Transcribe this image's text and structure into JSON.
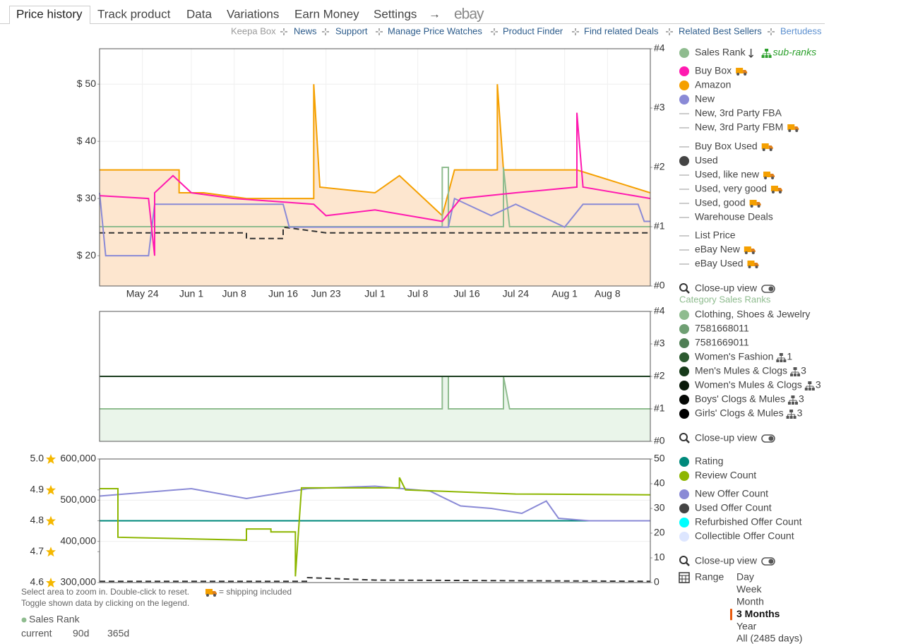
{
  "tabs": [
    "Price history",
    "Track product",
    "Data",
    "Variations",
    "Earn Money",
    "Settings",
    "→",
    "ebay"
  ],
  "links": [
    "Keepa Box",
    "News",
    "Support",
    "Manage Price Watches",
    "Product Finder",
    "Find related Deals",
    "Related Best Sellers",
    "Bertudess"
  ],
  "chart_data": [
    {
      "type": "line",
      "xlim": [
        "May 17",
        "Aug 15"
      ],
      "xticks": [
        "May 24",
        "Jun 1",
        "Jun 8",
        "Jun 16",
        "Jun 23",
        "Jul 1",
        "Jul 8",
        "Jul 16",
        "Jul 24",
        "Aug 1",
        "Aug 8"
      ],
      "ylim": [
        14.7,
        56.2
      ],
      "yticks": [
        {
          "value": 20,
          "label": "$ 20"
        },
        {
          "value": 30,
          "label": "$ 30"
        },
        {
          "value": 40,
          "label": "$ 40"
        },
        {
          "value": 50,
          "label": "$ 50"
        }
      ],
      "y2lim": [
        0,
        4
      ],
      "y2ticks": [
        {
          "value": 0,
          "label": "#0"
        },
        {
          "value": 1,
          "label": "#1"
        },
        {
          "value": 2,
          "label": "#2"
        },
        {
          "value": 3,
          "label": "#3"
        },
        {
          "value": 4,
          "label": "#4"
        }
      ],
      "grid": true,
      "series": [
        {
          "color": "#f5a000",
          "fill": "#fde6cf",
          "x": [
            "May 17",
            "May 30",
            "May 30",
            "Jun 3",
            "Jun 10",
            "Jun 21",
            "Jun 21",
            "Jun 22",
            "Jul 1",
            "Jul 5",
            "Jul 12",
            "Jul 14",
            "Jul 21",
            "Jul 21",
            "Jul 22",
            "Aug 3",
            "Aug 15"
          ],
          "values": [
            35,
            35,
            31,
            31,
            30,
            30,
            50,
            32,
            31,
            34,
            27,
            35,
            35,
            50,
            35,
            35,
            31
          ]
        },
        {
          "color": "#8fbc8f",
          "axis": "y2",
          "x": [
            "May 17",
            "Jul 12",
            "Jul 12",
            "Jul 13",
            "Jul 13",
            "Jul 22",
            "Jul 22",
            "Jul 23",
            "Aug 15"
          ],
          "values": [
            1,
            1,
            2,
            2,
            1,
            1,
            2,
            1,
            1
          ]
        },
        {
          "color": "#333333",
          "dash": true,
          "x": [
            "May 17",
            "Jun 10",
            "Jun 10",
            "Jun 16",
            "Jun 16",
            "Jun 23",
            "Aug 15"
          ],
          "values": [
            24,
            24,
            23,
            23,
            25,
            24,
            24
          ]
        },
        {
          "color": "#8a8ad6",
          "x": [
            "May 17",
            "May 18",
            "May 25",
            "May 26",
            "Jun 16",
            "Jun 17",
            "Jul 13",
            "Jul 14",
            "Jul 20",
            "Jul 24",
            "Aug 1",
            "Aug 4",
            "Aug 13",
            "Aug 14",
            "Aug 15"
          ],
          "values": [
            31,
            20,
            20,
            29,
            29,
            25,
            25,
            30,
            27,
            29,
            25,
            29,
            29,
            26,
            26
          ]
        },
        {
          "color": "#ff1ab0",
          "x": [
            "May 17",
            "May 25",
            "May 26",
            "May 26",
            "May 29",
            "Jun 1",
            "Jun 8",
            "Jun 21",
            "Jun 23",
            "Jul 1",
            "Jul 12",
            "Jul 15",
            "Jul 24",
            "Aug 3",
            "Aug 3",
            "Aug 4",
            "Aug 15"
          ],
          "values": [
            30.5,
            30,
            20,
            31,
            34,
            31,
            30,
            29,
            27,
            28,
            26,
            30,
            31,
            32,
            45,
            32,
            30
          ]
        }
      ]
    },
    {
      "type": "line",
      "xlim": [
        "May 17",
        "Aug 15"
      ],
      "y2lim": [
        0,
        4
      ],
      "y2ticks": [
        {
          "value": 0,
          "label": "#0"
        },
        {
          "value": 1,
          "label": "#1"
        },
        {
          "value": 2,
          "label": "#2"
        },
        {
          "value": 3,
          "label": "#3"
        },
        {
          "value": 4,
          "label": "#4"
        }
      ],
      "series": [
        {
          "color": "#8fbc8f",
          "fill": "#eaf5ea",
          "axis": "y2",
          "x": [
            "May 17",
            "Jul 12",
            "Jul 12",
            "Jul 13",
            "Jul 13",
            "Jul 22",
            "Jul 22",
            "Jul 23",
            "Aug 15"
          ],
          "values": [
            1,
            1,
            2,
            2,
            1,
            1,
            2,
            1,
            1
          ]
        },
        {
          "color": "#1b3d1f",
          "axis": "y2",
          "x": [
            "May 17",
            "Aug 15"
          ],
          "values": [
            2,
            2
          ]
        }
      ]
    },
    {
      "type": "line",
      "xlim": [
        "May 17",
        "Aug 15"
      ],
      "ylim": [
        300000,
        600000
      ],
      "yticks": [
        {
          "value": 300000,
          "label": "300,000"
        },
        {
          "value": 400000,
          "label": "400,000"
        },
        {
          "value": 500000,
          "label": "500,000"
        },
        {
          "value": 600000,
          "label": "600,000"
        }
      ],
      "y2lim": [
        0,
        50
      ],
      "y2ticks": [
        0,
        10,
        20,
        30,
        40,
        50
      ],
      "y3lim": [
        4.6,
        5.0
      ],
      "y3ticks": [
        4.6,
        4.7,
        4.8,
        4.9,
        {
          "value": 5,
          "label": "5.0"
        }
      ],
      "grid": true,
      "series": [
        {
          "color": "#333333",
          "axis": "y2",
          "dash": true,
          "x": [
            "May 17",
            "Jun 20",
            "Jun 20",
            "Jul 1",
            "Aug 15"
          ],
          "values": [
            0.5,
            0.5,
            2,
            1,
            0.5
          ]
        },
        {
          "color": "#00897b",
          "axis": "y3",
          "x": [
            "May 17",
            "Aug 15"
          ],
          "values": [
            4.8,
            4.8
          ]
        },
        {
          "color": "#8a8ad6",
          "axis": "y2",
          "x": [
            "May 17",
            "Jun 1",
            "Jun 10",
            "Jun 20",
            "Jul 1",
            "Jul 10",
            "Jul 15",
            "Jul 20",
            "Jul 25",
            "Jul 29",
            "Jul 31",
            "Aug 5",
            "Aug 15"
          ],
          "values": [
            35,
            38,
            34,
            38,
            39,
            37,
            31,
            30,
            28,
            33,
            26,
            25,
            25
          ]
        },
        {
          "color": "#8db600",
          "x": [
            "May 17",
            "May 20",
            "May 20",
            "Jun 10",
            "Jun 10",
            "Jun 14",
            "Jun 14",
            "Jun 18",
            "Jun 18",
            "Jun 19",
            "Jun 20",
            "Jul 5",
            "Jul 5",
            "Jul 6",
            "Jul 24",
            "Aug 15"
          ],
          "values": [
            528000,
            528000,
            410000,
            403000,
            430000,
            430000,
            423000,
            423000,
            315000,
            530000,
            530000,
            530000,
            555000,
            525000,
            515000,
            513000
          ]
        }
      ]
    }
  ],
  "legend": {
    "sales_rank": {
      "label": "Sales Rank",
      "color": "#8fbc8f",
      "sub_ranks": "sub-ranks"
    },
    "price_groups": [
      [
        {
          "label": "Buy Box",
          "color": "#ff1ab0",
          "marker": "dot",
          "shipping": true
        },
        {
          "label": "Amazon",
          "color": "#f5a000",
          "marker": "dot"
        },
        {
          "label": "New",
          "color": "#8a8ad6",
          "marker": "dot"
        },
        {
          "label": "New, 3rd Party FBA",
          "color": "#bbbbbb",
          "marker": "line"
        },
        {
          "label": "New, 3rd Party FBM",
          "color": "#bbbbbb",
          "marker": "line",
          "shipping": true
        }
      ],
      [
        {
          "label": "Buy Box Used",
          "color": "#bbbbbb",
          "marker": "line",
          "shipping": true
        },
        {
          "label": "Used",
          "color": "#444444",
          "marker": "dot"
        },
        {
          "label": "Used, like new",
          "color": "#bbbbbb",
          "marker": "line",
          "shipping": true
        },
        {
          "label": "Used, very good",
          "color": "#bbbbbb",
          "marker": "line",
          "shipping": true
        },
        {
          "label": "Used, good",
          "color": "#bbbbbb",
          "marker": "line",
          "shipping": true
        },
        {
          "label": "Warehouse Deals",
          "color": "#bbbbbb",
          "marker": "line"
        }
      ],
      [
        {
          "label": "List Price",
          "color": "#bbbbbb",
          "marker": "line"
        },
        {
          "label": "eBay New",
          "color": "#bbbbbb",
          "marker": "line",
          "shipping": true
        },
        {
          "label": "eBay Used",
          "color": "#bbbbbb",
          "marker": "line",
          "shipping": true
        }
      ]
    ],
    "closeup": [
      "Close-up view",
      "Close-up view",
      "Close-up view"
    ],
    "category_title": "Category Sales Ranks",
    "category_groups": [
      [
        {
          "label": "Clothing, Shoes & Jewelry",
          "color": "#8fbc8f",
          "marker": "dot"
        },
        {
          "label": "7581668011",
          "color": "#6f9f73",
          "marker": "dot"
        },
        {
          "label": "7581669011",
          "color": "#4f7f55",
          "marker": "dot"
        },
        {
          "label": "Women's Fashion",
          "color": "#2c5a30",
          "marker": "dot",
          "count": 1
        },
        {
          "label": "Men's Mules & Clogs",
          "color": "#173a1a",
          "marker": "dot",
          "count": 3
        },
        {
          "label": "Women's Mules & Clogs",
          "color": "#0a1a0a",
          "marker": "dot",
          "count": 3
        },
        {
          "label": "Boys' Clogs & Mules",
          "color": "#050805",
          "marker": "dot",
          "count": 3
        },
        {
          "label": "Girls' Clogs & Mules",
          "color": "#000000",
          "marker": "dot",
          "count": 3
        }
      ]
    ],
    "offer_groups": [
      [
        {
          "label": "Rating",
          "color": "#00897b",
          "marker": "dot"
        },
        {
          "label": "Review Count",
          "color": "#8db600",
          "marker": "dot"
        }
      ],
      [
        {
          "label": "New Offer Count",
          "color": "#8a8ad6",
          "marker": "dot"
        },
        {
          "label": "Used Offer Count",
          "color": "#444444",
          "marker": "dot"
        },
        {
          "label": "Refurbished Offer Count",
          "color": "#00ffff",
          "marker": "dot"
        },
        {
          "label": "Collectible Offer Count",
          "color": "#dde6ff",
          "marker": "dot"
        }
      ]
    ],
    "range": {
      "label": "Range",
      "options": [
        "Day",
        "Week",
        "Month",
        "3 Months",
        "Year",
        "All (2485 days)"
      ],
      "selected": 3
    }
  },
  "notes": {
    "zoom": "Select area to zoom in. Double-click to reset.",
    "shipping": "= shipping included",
    "toggle": "Toggle shown data by clicking on the legend."
  },
  "footer": {
    "sales_rank": "Sales Rank",
    "columns": [
      "current",
      "90d",
      "365d"
    ]
  }
}
